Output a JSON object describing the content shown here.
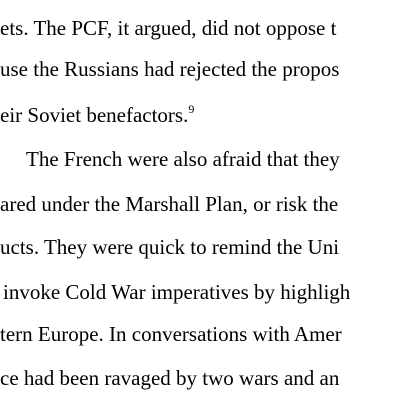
{
  "document": {
    "lines": [
      "ets. The PCF, it argued, did not oppose t",
      "use the Russians had rejected the propos",
      "eir Soviet benefactors.",
      "The French were also afraid that they",
      "ared under the Marshall Plan, or risk the",
      "ucts. They were quick to remind the Uni",
      "invoke Cold War imperatives by highligh",
      "tern Europe. In conversations with Amer",
      "ce had been ravaged by two wars and an"
    ],
    "footnote_ref": "9"
  }
}
